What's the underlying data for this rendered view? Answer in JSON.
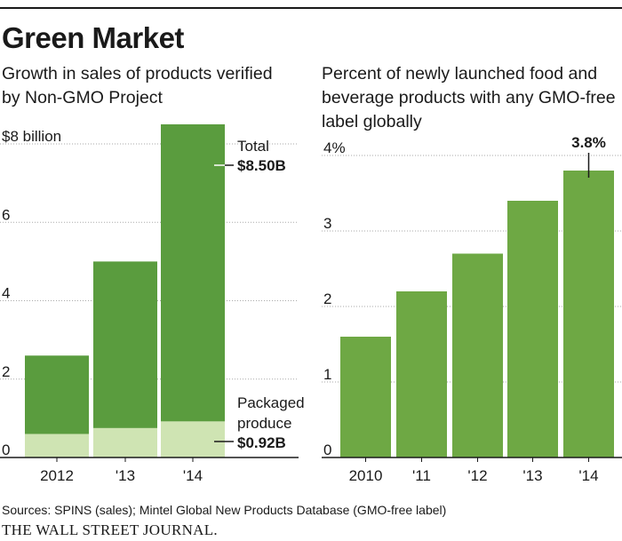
{
  "title": "Green Market",
  "source": "Sources: SPINS (sales); Mintel Global New Products Database (GMO-free label)",
  "publisher": "THE WALL STREET JOURNAL.",
  "colors": {
    "total": "#5a9c3e",
    "packaged_produce": "#cfe4b3",
    "percent": "#6ea844",
    "text": "#1a1a1a",
    "grid": "#aaaaaa"
  },
  "chart_data": [
    {
      "type": "bar",
      "subtitle": "Growth in sales of products verified by Non-GMO Project",
      "categories": [
        "2012",
        "'13",
        "'14"
      ],
      "stacked": true,
      "series": [
        {
          "name": "Packaged produce",
          "values": [
            0.6,
            0.75,
            0.92
          ]
        },
        {
          "name": "Total",
          "values": [
            2.6,
            5.0,
            8.5
          ]
        }
      ],
      "yticks": [
        "0",
        "2",
        "4",
        "6",
        "$8 billion"
      ],
      "ytick_values": [
        0,
        2,
        4,
        6,
        8
      ],
      "ylim": [
        0,
        8.8
      ],
      "grid": true,
      "annotations": {
        "total": {
          "label": "Total",
          "value": "$8.50B"
        },
        "packaged": {
          "label_line1": "Packaged",
          "label_line2": "produce",
          "value": "$0.92B"
        }
      }
    },
    {
      "type": "bar",
      "subtitle": "Percent of newly launched food and beverage products with any GMO-free label globally",
      "categories": [
        "2010",
        "'11",
        "'12",
        "'13",
        "'14"
      ],
      "series": [
        {
          "name": "GMO-free label",
          "values": [
            1.6,
            2.2,
            2.7,
            3.4,
            3.8
          ]
        }
      ],
      "yticks": [
        "0",
        "1",
        "2",
        "3",
        "4%"
      ],
      "ytick_values": [
        0,
        1,
        2,
        3,
        4
      ],
      "ylim": [
        0,
        4.4
      ],
      "grid": true,
      "annotations": {
        "last": {
          "value": "3.8%"
        }
      }
    }
  ]
}
